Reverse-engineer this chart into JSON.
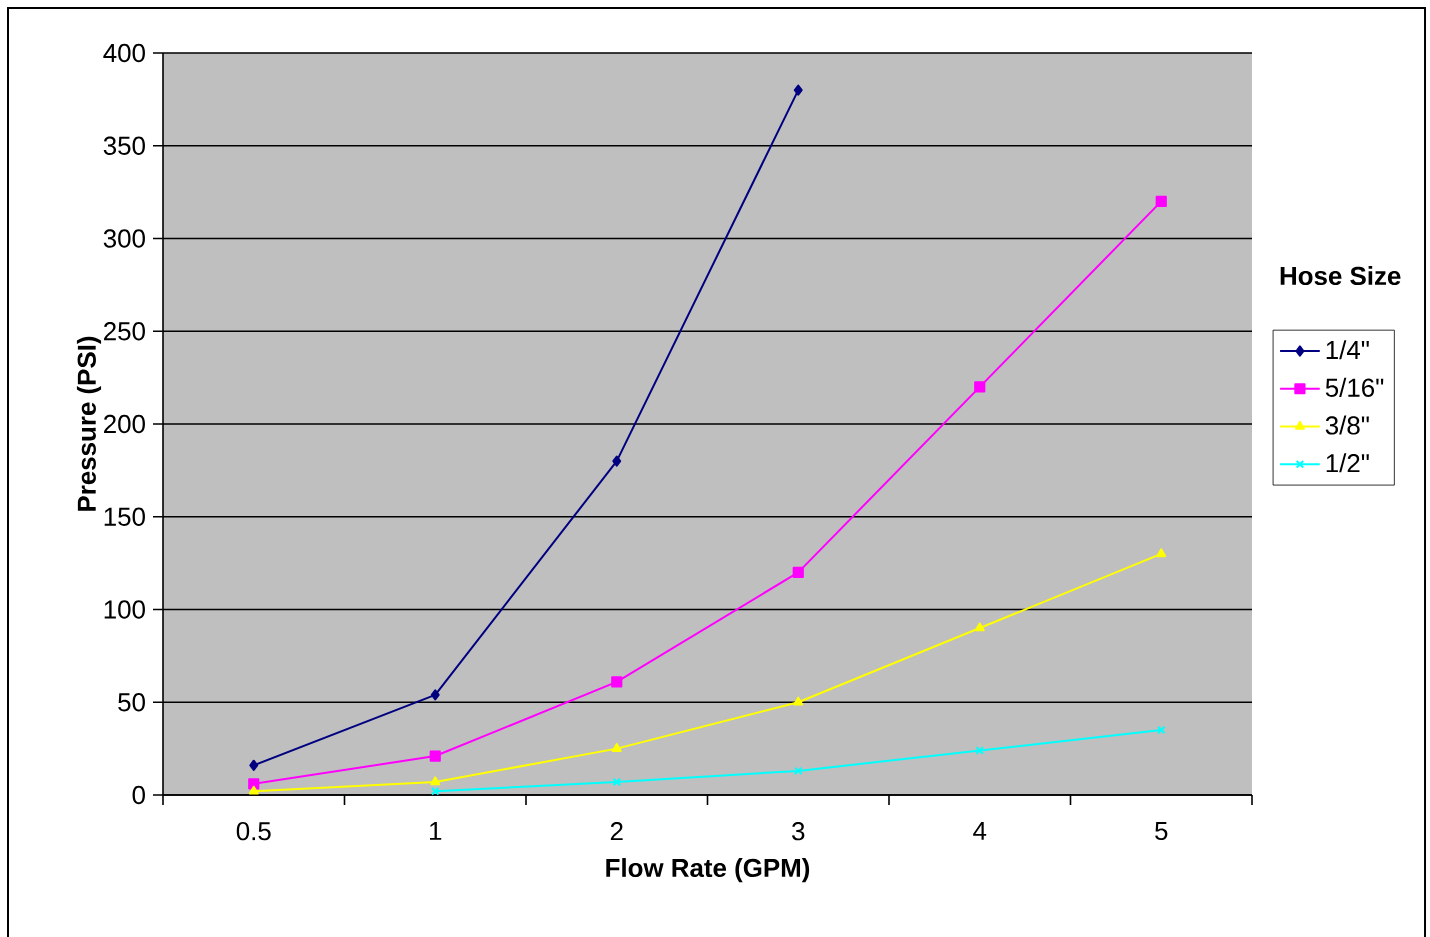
{
  "chart_data": {
    "type": "line",
    "xlabel": "Flow Rate (GPM)",
    "ylabel": "Pressure (PSI)",
    "legend_title": "Hose Size",
    "categories": [
      "0.5",
      "1",
      "2",
      "3",
      "4",
      "5"
    ],
    "series": [
      {
        "name": "1/4\"",
        "color": "#000080",
        "marker": "diamond",
        "values": [
          16,
          54,
          180,
          380,
          null,
          null
        ]
      },
      {
        "name": "5/16\"",
        "color": "#ff00ff",
        "marker": "square",
        "values": [
          6,
          21,
          61,
          120,
          220,
          320
        ]
      },
      {
        "name": "3/8\"",
        "color": "#ffff00",
        "marker": "triangle",
        "values": [
          2,
          7,
          25,
          50,
          90,
          130
        ]
      },
      {
        "name": "1/2\"",
        "color": "#00ffff",
        "marker": "cross",
        "values": [
          null,
          2,
          7,
          13,
          24,
          35
        ]
      }
    ],
    "ylim": [
      0,
      400
    ],
    "yticks": [
      0,
      50,
      100,
      150,
      200,
      250,
      300,
      350,
      400
    ],
    "grid": "y",
    "legend": "right",
    "line_style": "solid"
  }
}
